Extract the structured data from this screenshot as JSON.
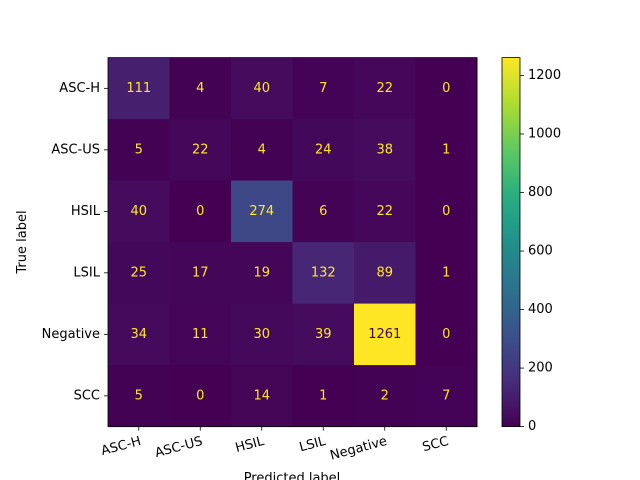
{
  "chart_data": {
    "type": "heatmap",
    "title": "",
    "xlabel": "Predicted label",
    "ylabel": "True label",
    "x_categories": [
      "ASC-H",
      "ASC-US",
      "HSIL",
      "LSIL",
      "Negative",
      "SCC"
    ],
    "y_categories": [
      "ASC-H",
      "ASC-US",
      "HSIL",
      "LSIL",
      "Negative",
      "SCC"
    ],
    "values": [
      [
        111,
        4,
        40,
        7,
        22,
        0
      ],
      [
        5,
        22,
        4,
        24,
        38,
        1
      ],
      [
        40,
        0,
        274,
        6,
        22,
        0
      ],
      [
        25,
        17,
        19,
        132,
        89,
        1
      ],
      [
        34,
        11,
        30,
        39,
        1261,
        0
      ],
      [
        5,
        0,
        14,
        1,
        2,
        7
      ]
    ],
    "colormap": "viridis",
    "colorbar": {
      "range": [
        0,
        1261
      ],
      "ticks": [
        "0",
        "200",
        "400",
        "600",
        "800",
        "1000",
        "1200"
      ]
    },
    "text_colors": {
      "dark_cells": "#fde725",
      "bright_cells": "#440154"
    },
    "x_tick_rotation_deg": 15
  }
}
